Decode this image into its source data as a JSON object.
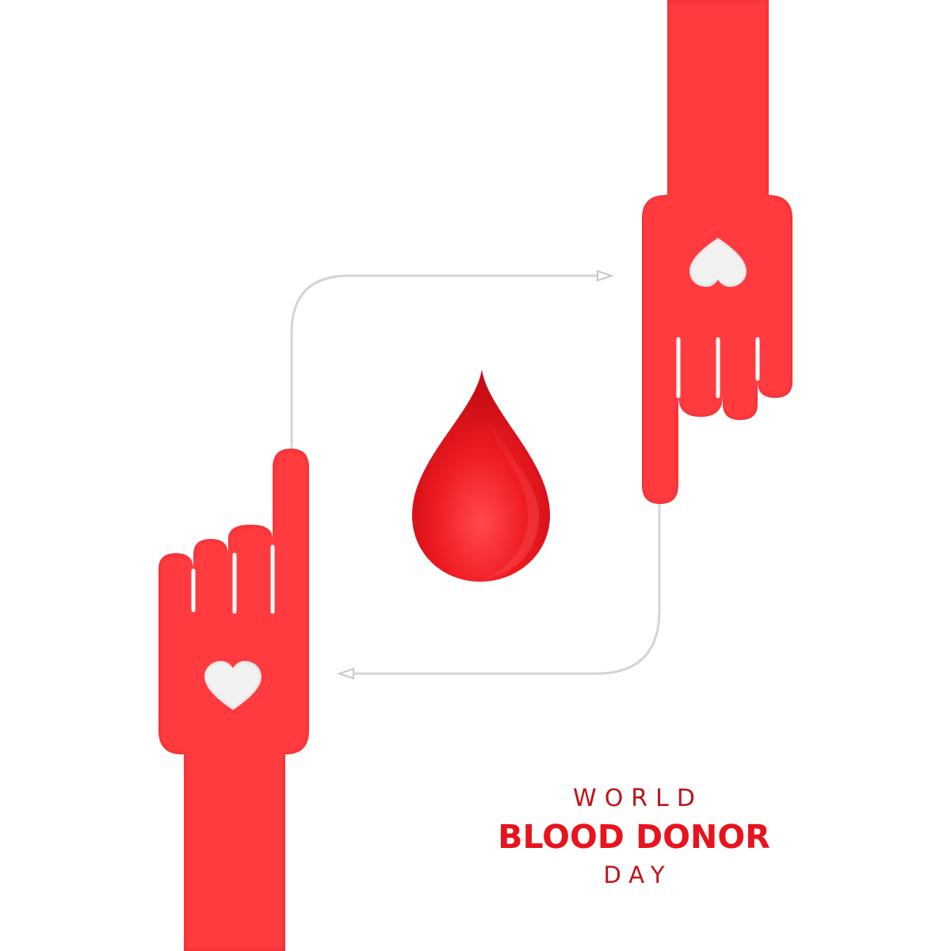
{
  "poster": {
    "line1": "WORLD",
    "line2": "BLOOD DONOR",
    "line3": "DAY"
  },
  "colors": {
    "background": "#ffffff",
    "primary_red": "#ff3b3f",
    "text_dark_red": "#c0121a",
    "text_red": "#e8131c",
    "line_gray": "#d4d4d4",
    "heart_white": "#f2f2f2"
  },
  "icons": [
    "left-hand-icon",
    "right-hand-icon",
    "blood-drop-icon",
    "heart-icon",
    "arrow-icon"
  ]
}
